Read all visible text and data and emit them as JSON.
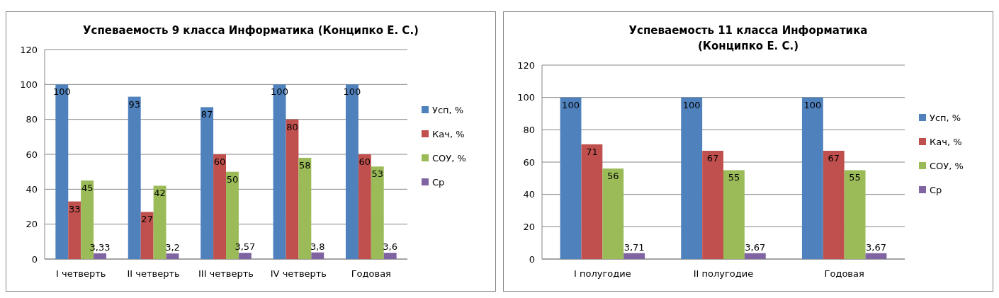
{
  "chart_data": [
    {
      "type": "bar",
      "title": "Успеваемость 9 класса Информатика (Конципко Е. С.)",
      "categories": [
        "I четверть",
        "II четверть",
        "III четверть",
        "IV четверть",
        "Годовая"
      ],
      "ylim": [
        0,
        120
      ],
      "yticks": [
        0,
        20,
        40,
        60,
        80,
        100,
        120
      ],
      "grid": "y",
      "legend": "right",
      "series": [
        {
          "name": "Усп, %",
          "color": "#4f81bd",
          "values": [
            100,
            93,
            87,
            100,
            100
          ],
          "value_labels": [
            "100",
            "93",
            "87",
            "100",
            "100"
          ]
        },
        {
          "name": "Кач, %",
          "color": "#c0504d",
          "values": [
            33,
            27,
            60,
            80,
            60
          ],
          "value_labels": [
            "33",
            "27",
            "60",
            "80",
            "60"
          ]
        },
        {
          "name": "СОУ, %",
          "color": "#9bbb59",
          "values": [
            45,
            42,
            50,
            58,
            53
          ],
          "value_labels": [
            "45",
            "42",
            "50",
            "58",
            "53"
          ]
        },
        {
          "name": "Ср",
          "color": "#8064a2",
          "values": [
            3.33,
            3.2,
            3.57,
            3.8,
            3.6
          ],
          "value_labels": [
            "3,33",
            "3,2",
            "3,57",
            "3,8",
            "3,6"
          ]
        }
      ]
    },
    {
      "type": "bar",
      "title": "Успеваемость 11 класса Информатика (Конципко Е. С.)",
      "categories": [
        "I полугодие",
        "II полугодие",
        "Годовая"
      ],
      "ylim": [
        0,
        120
      ],
      "yticks": [
        0,
        20,
        40,
        60,
        80,
        100,
        120
      ],
      "grid": "y",
      "legend": "right",
      "series": [
        {
          "name": "Усп, %",
          "color": "#4f81bd",
          "values": [
            100,
            100,
            100
          ],
          "value_labels": [
            "100",
            "100",
            "100"
          ]
        },
        {
          "name": "Кач, %",
          "color": "#c0504d",
          "values": [
            71,
            67,
            67
          ],
          "value_labels": [
            "71",
            "67",
            "67"
          ]
        },
        {
          "name": "СОУ, %",
          "color": "#9bbb59",
          "values": [
            56,
            55,
            55
          ],
          "value_labels": [
            "56",
            "55",
            "55"
          ]
        },
        {
          "name": "Ср",
          "color": "#8064a2",
          "values": [
            3.71,
            3.67,
            3.67
          ],
          "value_labels": [
            "3,71",
            "3,67",
            "3,67"
          ]
        }
      ]
    }
  ]
}
